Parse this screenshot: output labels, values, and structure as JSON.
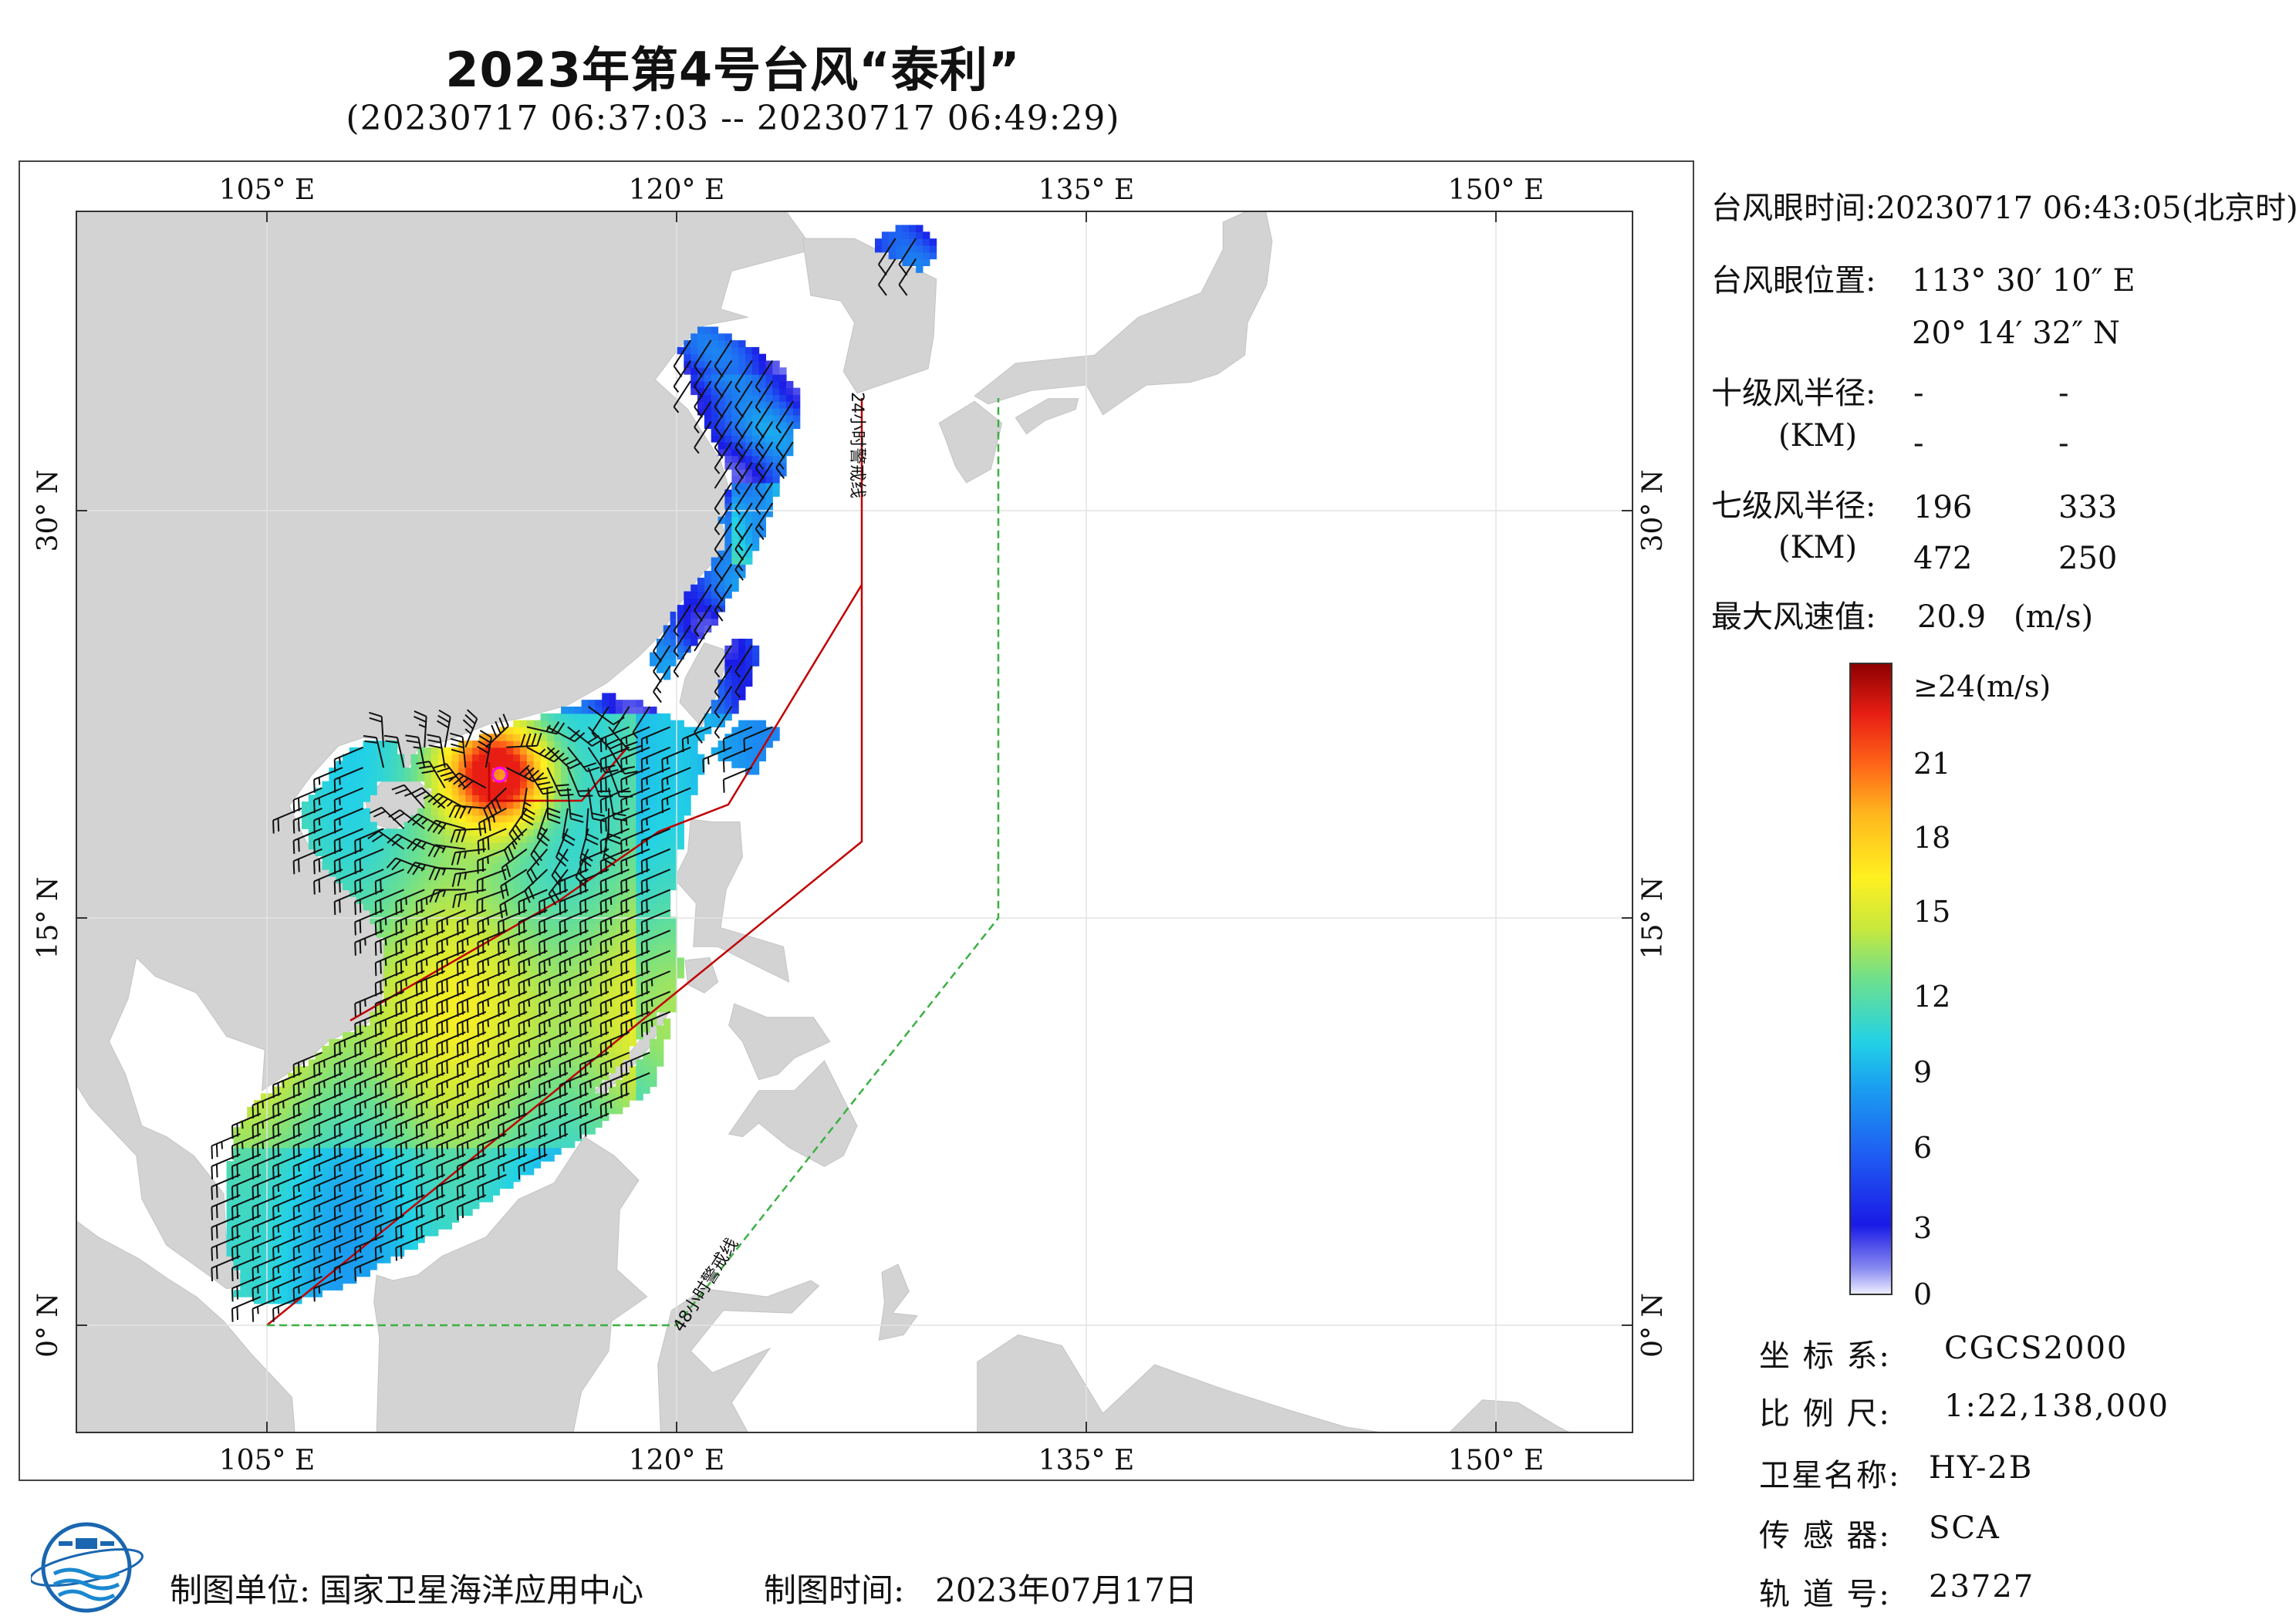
{
  "header": {
    "title": "2023年第4号台风“泰利”",
    "subtitle": "(20230717 06:37:03 -- 20230717 06:49:29)"
  },
  "map": {
    "lon_labels": [
      "105° E",
      "120° E",
      "135° E",
      "150° E"
    ],
    "lat_labels": [
      "30° N",
      "15° N",
      "0° N"
    ],
    "warning_line_24h": "24小时警戒线",
    "warning_line_48h": "48小时警戒线",
    "colors": {
      "land": "#d3d3d3",
      "sea": "#ffffff",
      "line_24h": "#c00000",
      "line_48h": "#3cb043",
      "barb": "#111111"
    }
  },
  "map_data": {
    "typhoon_eye": {
      "lon": 113.503,
      "lat": 20.242
    },
    "extent": {
      "lon": [
        98,
        155
      ],
      "lat": [
        -4,
        41
      ]
    }
  },
  "info": {
    "eye_time_label": "台风眼时间:",
    "eye_time_value": "20230717 06:43:05(北京时)",
    "eye_pos_label": "台风眼位置:",
    "eye_lon": "113° 30′ 10″ E",
    "eye_lat": "20° 14′ 32″ N",
    "r10_label": "十级风半径:",
    "r10_unit": "(KM)",
    "r10_values": [
      "-",
      "-",
      "-",
      "-"
    ],
    "r7_label": "七级风半径:",
    "r7_unit": "(KM)",
    "r7_values": [
      "196",
      "333",
      "472",
      "250"
    ],
    "max_wind_label": "最大风速值:",
    "max_wind_value": "20.9",
    "max_wind_unit": "(m/s)"
  },
  "legend": {
    "top_label": "≥24(m/s)",
    "ticks": [
      "21",
      "18",
      "15",
      "12",
      "9",
      "6",
      "3",
      "0"
    ],
    "stops": [
      "#f0f0ff",
      "#8a8cf0",
      "#1a1ae6",
      "#1f5cf2",
      "#1aa0f0",
      "#22d2e6",
      "#6ee08c",
      "#c8e83c",
      "#fff020",
      "#ffb81e",
      "#ff6418",
      "#e81e14",
      "#8c0000"
    ]
  },
  "metadata_panel": {
    "crs_label": "坐 标 系:",
    "crs_value": "CGCS2000",
    "scale_label": "比 例 尺:",
    "scale_value": "1:22,138,000",
    "satellite_label": "卫星名称:",
    "satellite_value": "HY-2B",
    "sensor_label": "传 感 器:",
    "sensor_value": "SCA",
    "orbit_label": "轨 道 号:",
    "orbit_value": "23727"
  },
  "footer": {
    "org_label": "制图单位:",
    "org_value": "国家卫星海洋应用中心",
    "time_label": "制图时间:",
    "time_value": "2023年07月17日"
  }
}
